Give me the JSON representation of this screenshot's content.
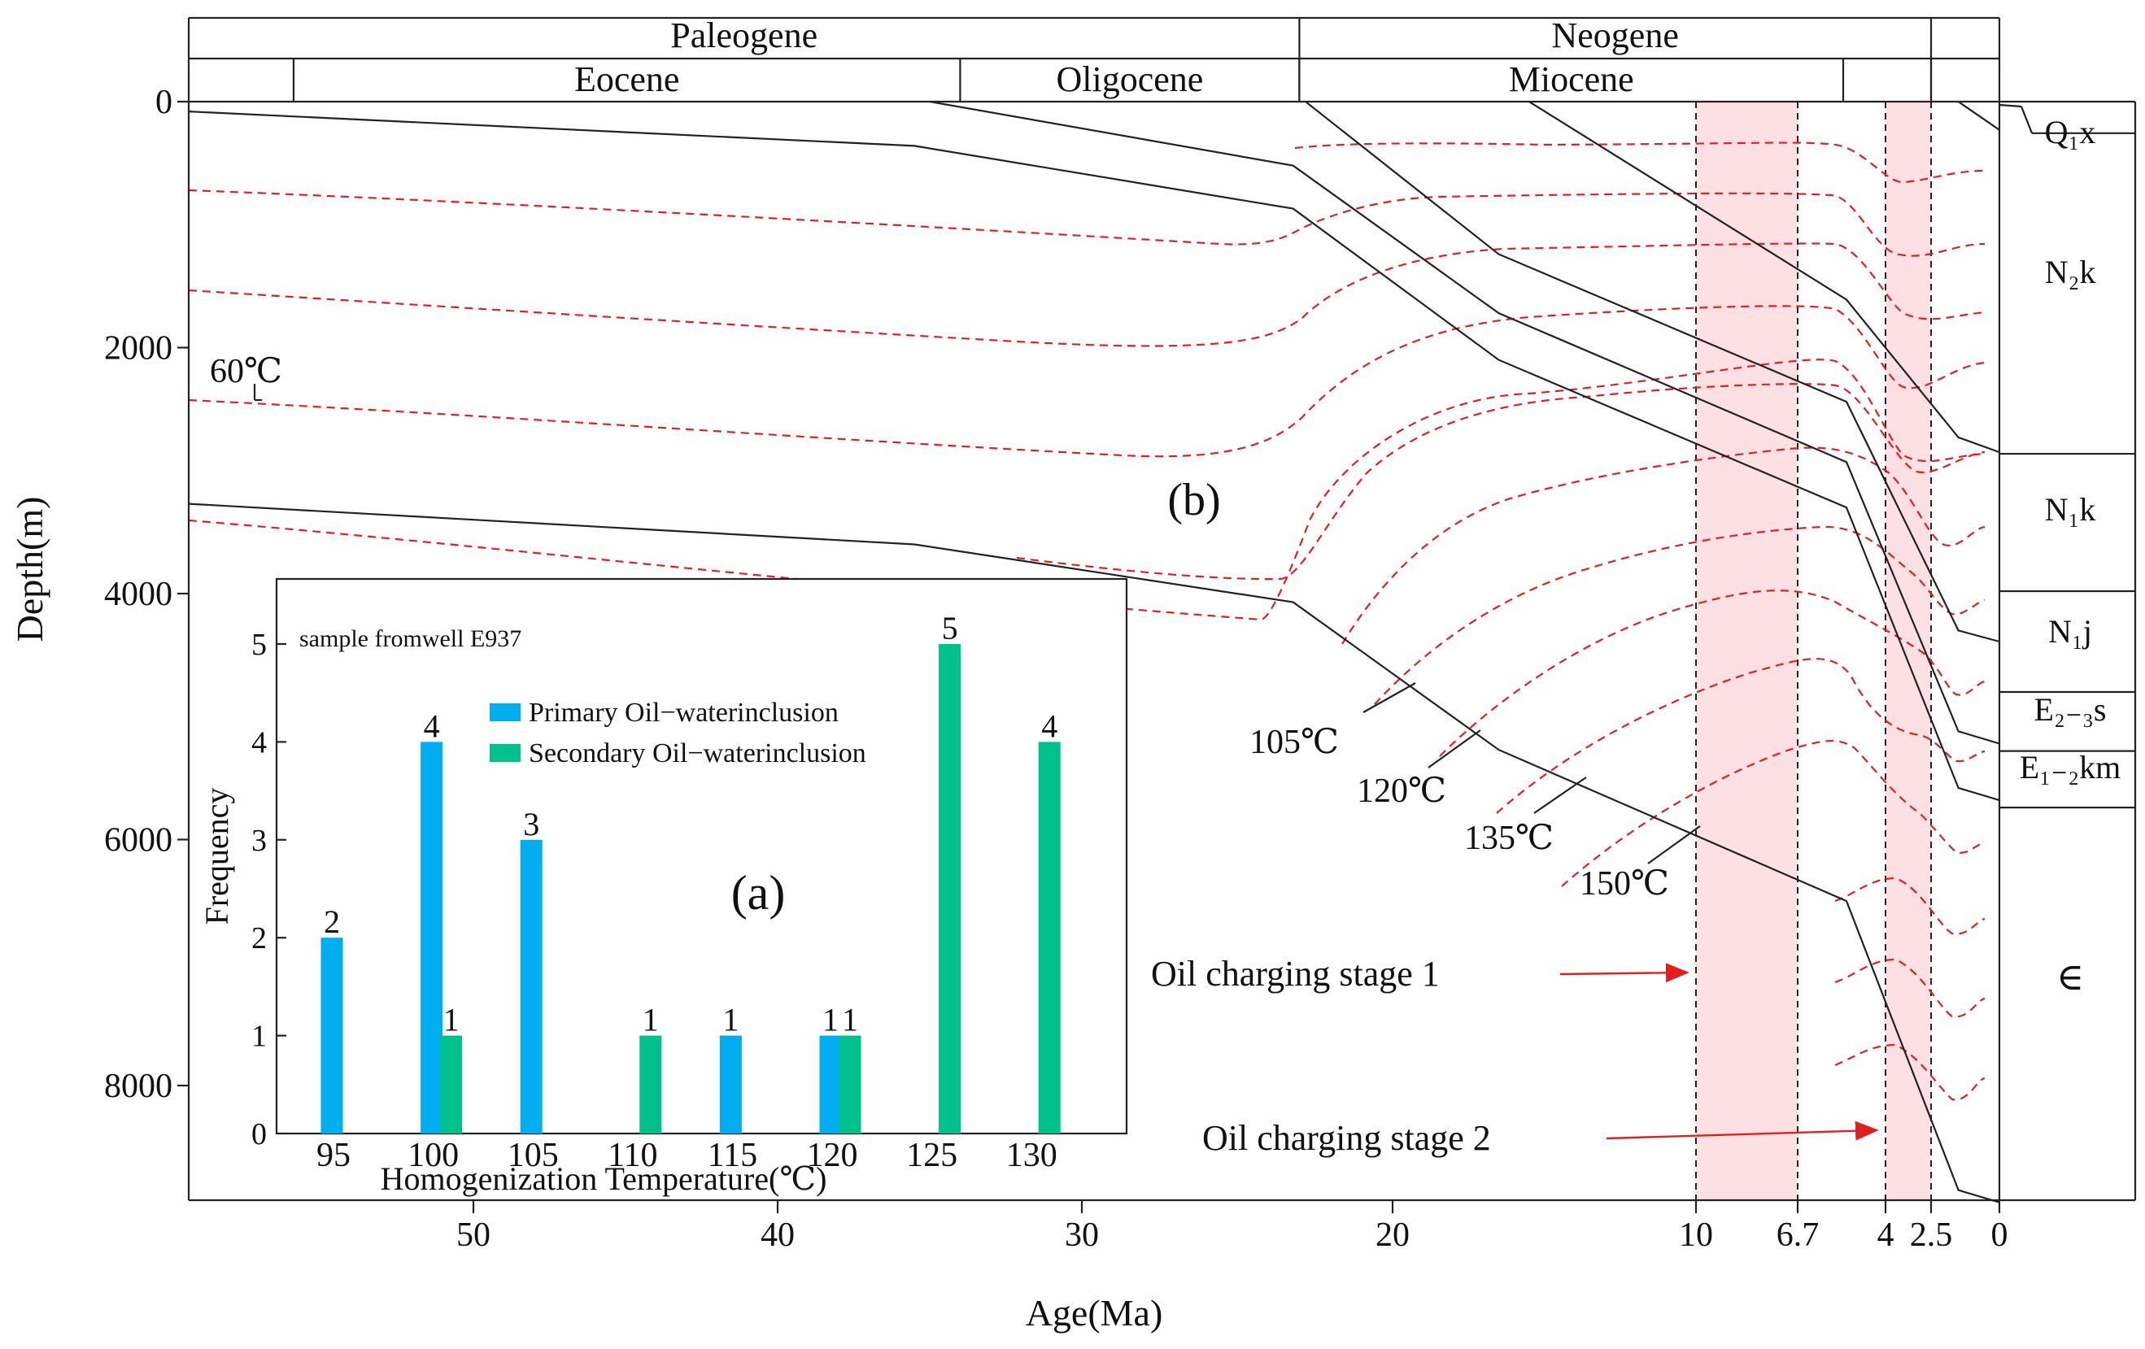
{
  "chart_data": [
    {
      "id": "b",
      "type": "line",
      "panel_label": "(b)",
      "xlabel": "Age(Ma)",
      "ylabel": "Depth(m)",
      "xlim": [
        59.5,
        0
      ],
      "ylim": [
        0,
        9000
      ],
      "x_ticks": [
        {
          "value": 50,
          "label": "50"
        },
        {
          "value": 40,
          "label": "40"
        },
        {
          "value": 30,
          "label": "30"
        },
        {
          "value": 20,
          "label": "20"
        },
        {
          "value": 10,
          "label": "10"
        },
        {
          "value": 6.7,
          "label": "6.7"
        },
        {
          "value": 4,
          "label": "4"
        },
        {
          "value": 2.5,
          "label": "2.5"
        },
        {
          "value": 0,
          "label": "0"
        }
      ],
      "y_ticks": [
        {
          "value": 0,
          "label": "0"
        },
        {
          "value": 2000,
          "label": "2000"
        },
        {
          "value": 4000,
          "label": "4000"
        },
        {
          "value": 6000,
          "label": "6000"
        },
        {
          "value": 8000,
          "label": "8000"
        }
      ],
      "periods": [
        {
          "name": "Paleogene",
          "from": 59.5,
          "to": 23
        },
        {
          "name": "Neogene",
          "from": 23,
          "to": 2.5
        },
        {
          "name": "",
          "from": 2.5,
          "to": 0
        }
      ],
      "epochs": [
        {
          "name": "",
          "from": 59.5,
          "to": 56
        },
        {
          "name": "Eocene",
          "from": 56,
          "to": 34
        },
        {
          "name": "Oligocene",
          "from": 34,
          "to": 23
        },
        {
          "name": "Miocene",
          "from": 23,
          "to": 5.3
        },
        {
          "name": "",
          "from": 5.3,
          "to": 2.5
        },
        {
          "name": "",
          "from": 2.5,
          "to": 0
        }
      ],
      "burial_curves": [
        {
          "name": "E1-2km base",
          "points": [
            [
              59.5,
              3270
            ],
            [
              35.5,
              3600
            ],
            [
              23.2,
              4070
            ],
            [
              16.5,
              5270
            ],
            [
              5.2,
              6500
            ],
            [
              1.5,
              8850
            ],
            [
              0,
              8950
            ]
          ]
        },
        {
          "name": "E2-3s base",
          "points": [
            [
              59.5,
              80
            ],
            [
              35.5,
              360
            ],
            [
              23.2,
              870
            ],
            [
              16.5,
              2100
            ],
            [
              5.2,
              3300
            ],
            [
              1.5,
              5580
            ],
            [
              0,
              5680
            ]
          ]
        },
        {
          "name": "N1j base",
          "points": [
            [
              35,
              0
            ],
            [
              23.2,
              520
            ],
            [
              16.5,
              1720
            ],
            [
              5.2,
              2930
            ],
            [
              1.5,
              5120
            ],
            [
              0,
              5220
            ]
          ]
        },
        {
          "name": "N1k base",
          "points": [
            [
              22.8,
              0
            ],
            [
              16.5,
              1240
            ],
            [
              5.2,
              2440
            ],
            [
              1.5,
              4300
            ],
            [
              0,
              4390
            ]
          ]
        },
        {
          "name": "N2k base",
          "points": [
            [
              15.5,
              0
            ],
            [
              5.2,
              1610
            ],
            [
              1.5,
              2730
            ],
            [
              0,
              2850
            ]
          ]
        },
        {
          "name": "Q1x base",
          "points": [
            [
              1.5,
              0
            ],
            [
              0,
              230
            ]
          ]
        }
      ],
      "isotherm_labels": [
        {
          "label": "60℃",
          "x": 51.2,
          "y": 2400
        },
        {
          "label": "105℃",
          "x": 21.8,
          "y": 4700
        },
        {
          "label": "120℃",
          "x": 16.5,
          "y": 5180
        },
        {
          "label": "135℃",
          "x": 13.3,
          "y": 5660
        },
        {
          "label": "150℃",
          "x": 10,
          "y": 6000
        }
      ],
      "shaded_intervals": [
        {
          "name": "Oil charging stage 1",
          "from": 10,
          "to": 6.7
        },
        {
          "name": "Oil charging stage 2",
          "from": 4,
          "to": 2.5
        }
      ],
      "annotations": [
        {
          "text": "Oil charging stage 1",
          "x": 10,
          "y": 7080
        },
        {
          "text": "Oil charging stage 2",
          "x": 4,
          "y": 8400
        }
      ],
      "formations": [
        {
          "name": "Q₁x",
          "top": 0,
          "bottom": 230
        },
        {
          "name": "N₂k",
          "top": 230,
          "bottom": 2850
        },
        {
          "name": "N₁k",
          "top": 2850,
          "bottom": 4000
        },
        {
          "name": "N₁j",
          "top": 4000,
          "bottom": 4800
        },
        {
          "name": "E₂₋₃s",
          "top": 4800,
          "bottom": 5300
        },
        {
          "name": "E₁₋₂km",
          "top": 5300,
          "bottom": 5700
        },
        {
          "name": "∈",
          "top": 5700,
          "bottom": 9000
        }
      ]
    },
    {
      "id": "a",
      "type": "bar",
      "panel_label": "(a)",
      "title": "sample fromwell E937",
      "xlabel": "Homogenization Temperature(℃)",
      "ylabel": "Frequency",
      "categories": [
        "95",
        "100",
        "105",
        "110",
        "115",
        "120",
        "125",
        "130"
      ],
      "ylim": [
        0,
        5.7
      ],
      "y_ticks": [
        0,
        1,
        2,
        3,
        4,
        5
      ],
      "series": [
        {
          "name": "Primary Oil−waterinclusion",
          "color": "#00aeef",
          "values": [
            2,
            4,
            3,
            null,
            1,
            1,
            null,
            null
          ]
        },
        {
          "name": "Secondary Oil−waterinclusion",
          "color": "#00c08b",
          "values": [
            null,
            1,
            null,
            1,
            null,
            1,
            5,
            4
          ]
        }
      ],
      "legend": "top-right"
    }
  ]
}
